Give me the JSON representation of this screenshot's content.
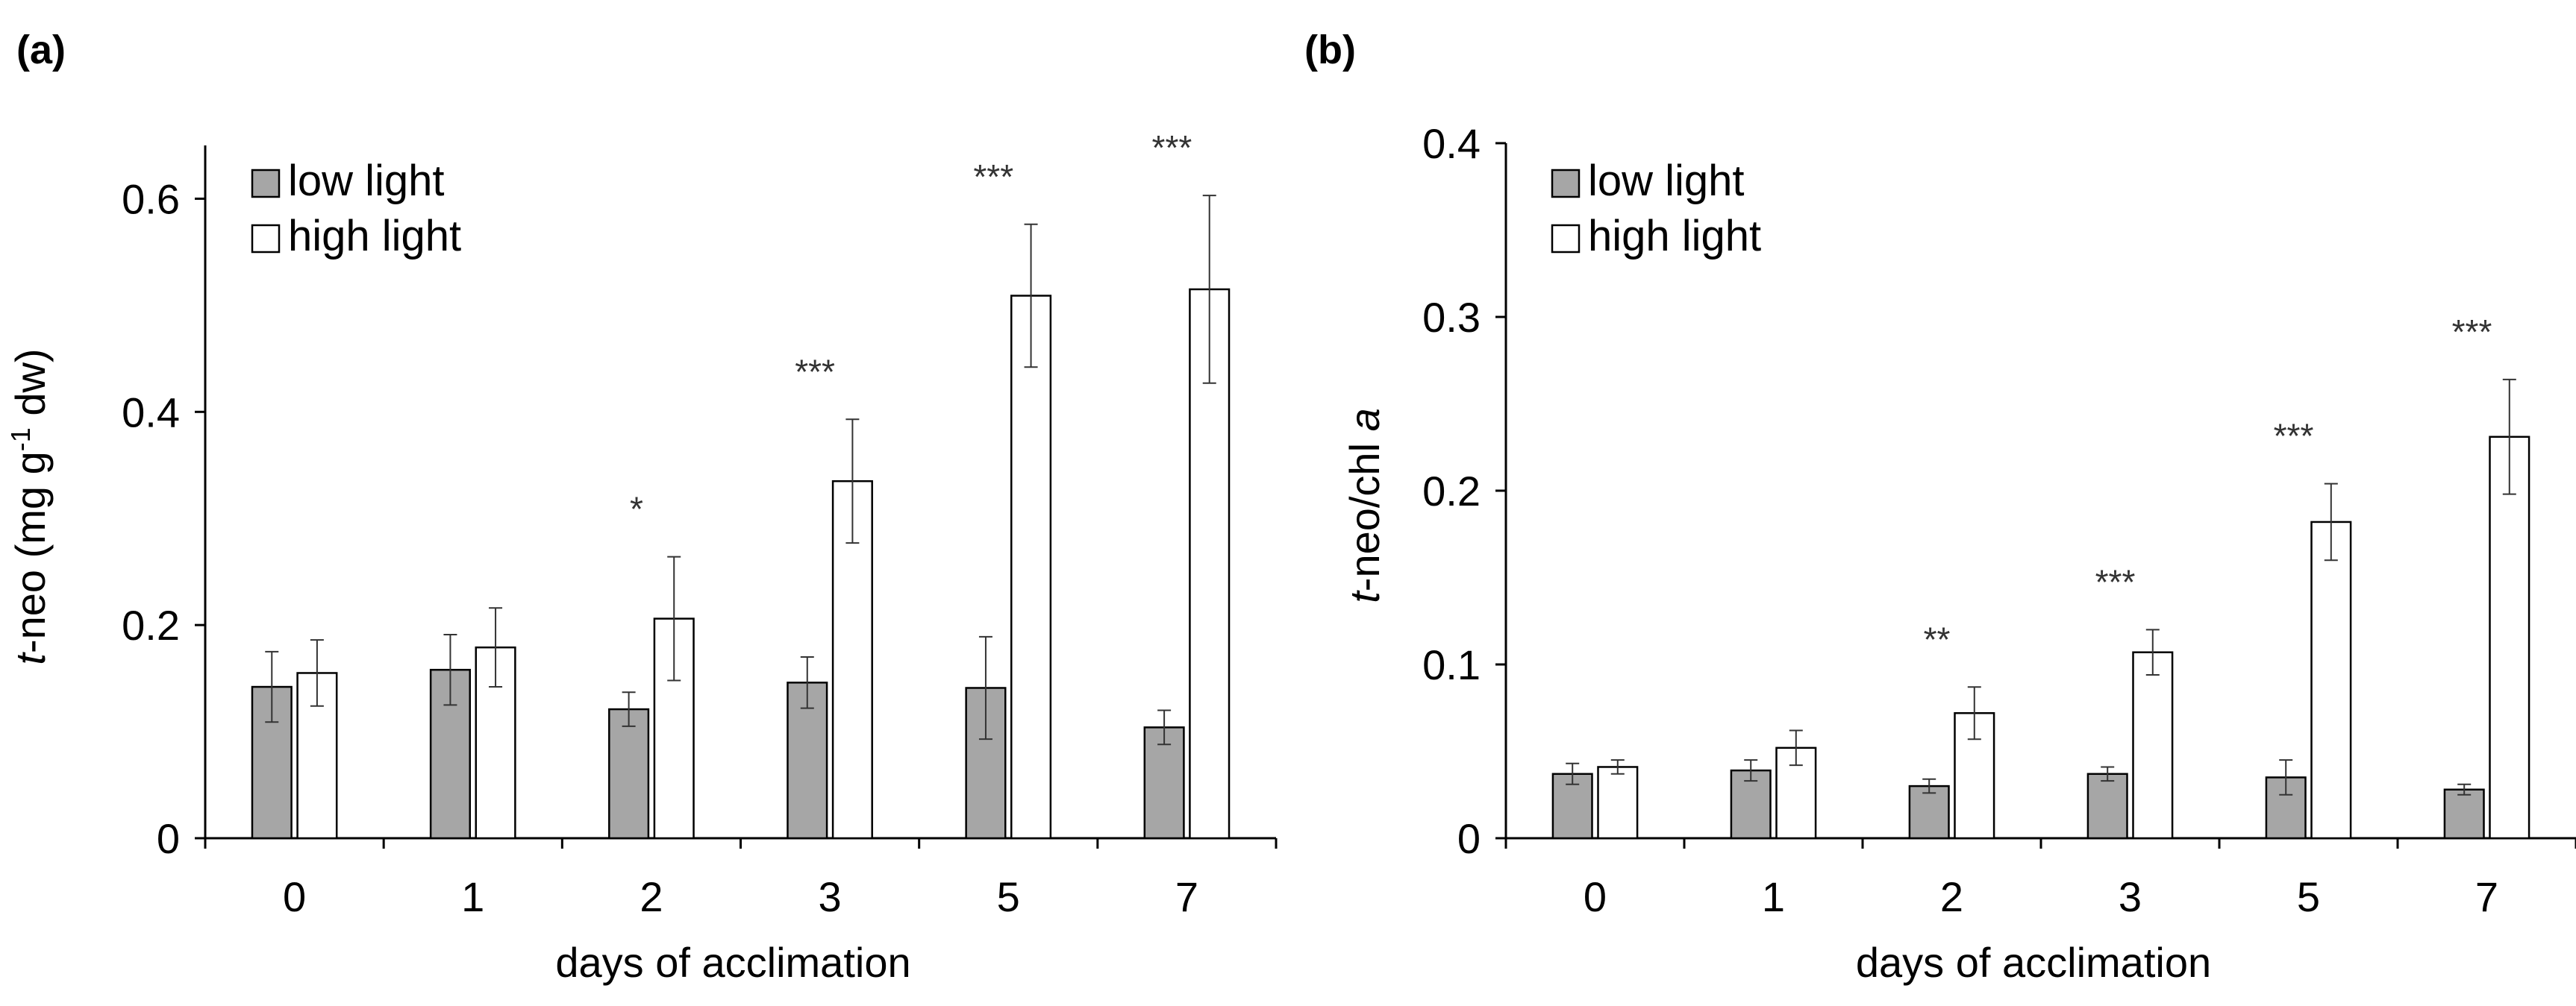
{
  "chart_data": [
    {
      "type": "bar",
      "panel_label": "(a)",
      "categories": [
        "0",
        "1",
        "2",
        "3",
        "5",
        "7"
      ],
      "series": [
        {
          "name": "low light",
          "values": [
            0.142,
            0.158,
            0.121,
            0.146,
            0.141,
            0.104
          ],
          "errors": [
            0.033,
            0.033,
            0.016,
            0.024,
            0.048,
            0.016
          ]
        },
        {
          "name": "high light",
          "values": [
            0.155,
            0.179,
            0.206,
            0.335,
            0.509,
            0.515
          ],
          "errors": [
            0.031,
            0.037,
            0.058,
            0.058,
            0.067,
            0.088
          ]
        }
      ],
      "significance": [
        "",
        "",
        "*",
        "***",
        "***",
        "***"
      ],
      "ylabel_italic": "t",
      "ylabel_pre": "-neo (mg g",
      "ylabel_sup": "-1",
      "ylabel_post": " dw)",
      "xlabel": "days of acclimation",
      "ylim": [
        0,
        0.65
      ],
      "yticks": [
        0,
        0.2,
        0.4,
        0.6
      ],
      "ytick_labels": [
        "0",
        "0.2",
        "0.4",
        "0.6"
      ]
    },
    {
      "type": "bar",
      "panel_label": "(b)",
      "categories": [
        "0",
        "1",
        "2",
        "3",
        "5",
        "7"
      ],
      "series": [
        {
          "name": "low light",
          "values": [
            0.037,
            0.039,
            0.03,
            0.037,
            0.035,
            0.028
          ],
          "errors": [
            0.006,
            0.006,
            0.004,
            0.004,
            0.01,
            0.003
          ]
        },
        {
          "name": "high light",
          "values": [
            0.041,
            0.052,
            0.072,
            0.107,
            0.182,
            0.231
          ],
          "errors": [
            0.004,
            0.01,
            0.015,
            0.013,
            0.022,
            0.033
          ]
        }
      ],
      "significance": [
        "",
        "",
        "**",
        "***",
        "***",
        "***"
      ],
      "ylabel_italic": "t",
      "ylabel_mid": "-neo/chl ",
      "ylabel_italic2": "a",
      "xlabel": "days of acclimation",
      "ylim": [
        0,
        0.4
      ],
      "yticks": [
        0,
        0.1,
        0.2,
        0.3,
        0.4
      ],
      "ytick_labels": [
        "0",
        "0.1",
        "0.2",
        "0.3",
        "0.4"
      ]
    }
  ],
  "colors": {
    "low_light": "#a6a6a6",
    "high_light": "#ffffff",
    "edge": "#000000",
    "axis": "#000000",
    "sig": "#333333"
  }
}
